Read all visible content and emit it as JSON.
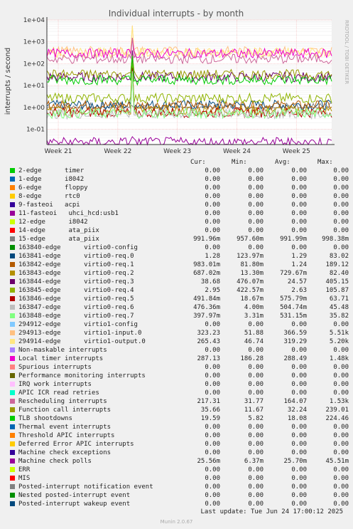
{
  "chart_data": {
    "type": "line",
    "title": "Individual interrupts - by month",
    "ylabel": "interrupts / second",
    "y_scale": "log",
    "ylim": [
      0.02,
      10000
    ],
    "y_ticks": [
      "1e+04",
      "1e+03",
      "1e+02",
      "1e+01",
      "1e+00",
      "1e-01"
    ],
    "x_ticks": [
      "Week 21",
      "Week 22",
      "Week 23",
      "Week 24",
      "Week 25"
    ],
    "grid": true,
    "side_text": "RRDTOOL / TOBI OETIKER",
    "columns": [
      "Cur:",
      "Min:",
      "Avg:",
      "Max:"
    ],
    "series": [
      {
        "name": "2-edge      timer",
        "color": "#00cc00",
        "cur": "0.00",
        "min": "0.00",
        "avg": "0.00",
        "max": "0.00"
      },
      {
        "name": "1-edge      i8042",
        "color": "#0066b3",
        "cur": "0.00",
        "min": "0.00",
        "avg": "0.00",
        "max": "0.00"
      },
      {
        "name": "6-edge      floppy",
        "color": "#ff8000",
        "cur": "0.00",
        "min": "0.00",
        "avg": "0.00",
        "max": "0.00"
      },
      {
        "name": "8-edge      rtc0",
        "color": "#ffcc00",
        "cur": "0.00",
        "min": "0.00",
        "avg": "0.00",
        "max": "0.00"
      },
      {
        "name": "9-fasteoi   acpi",
        "color": "#330099",
        "cur": "0.00",
        "min": "0.00",
        "avg": "0.00",
        "max": "0.00"
      },
      {
        "name": "11-fasteoi   uhci_hcd:usb1",
        "color": "#990099",
        "cur": "0.00",
        "min": "0.00",
        "avg": "0.00",
        "max": "0.00"
      },
      {
        "name": "12-edge      i8042",
        "color": "#ccff00",
        "cur": "0.00",
        "min": "0.00",
        "avg": "0.00",
        "max": "0.00"
      },
      {
        "name": "14-edge      ata_piix",
        "color": "#ff0000",
        "cur": "0.00",
        "min": "0.00",
        "avg": "0.00",
        "max": "0.00"
      },
      {
        "name": "15-edge      ata_piix",
        "color": "#808080",
        "cur": "991.96m",
        "min": "957.60m",
        "avg": "991.99m",
        "max": "998.38m"
      },
      {
        "name": "163840-edge      virtio0-config",
        "color": "#008f00",
        "cur": "0.00",
        "min": "0.00",
        "avg": "0.00",
        "max": "0.00"
      },
      {
        "name": "163841-edge      virtio0-req.0",
        "color": "#00487d",
        "cur": "1.28",
        "min": "123.97m",
        "avg": "1.29",
        "max": "83.02"
      },
      {
        "name": "163842-edge      virtio0-req.1",
        "color": "#b35a00",
        "cur": "983.01m",
        "min": "81.80m",
        "avg": "1.24",
        "max": "189.12"
      },
      {
        "name": "163843-edge      virtio0-req.2",
        "color": "#b38f00",
        "cur": "687.02m",
        "min": "13.30m",
        "avg": "729.67m",
        "max": "82.40"
      },
      {
        "name": "163844-edge      virtio0-req.3",
        "color": "#6b006b",
        "cur": "38.68",
        "min": "476.07m",
        "avg": "24.57",
        "max": "405.15"
      },
      {
        "name": "163845-edge      virtio0-req.4",
        "color": "#8fb300",
        "cur": "2.95",
        "min": "422.57m",
        "avg": "2.63",
        "max": "105.87"
      },
      {
        "name": "163846-edge      virtio0-req.5",
        "color": "#b30000",
        "cur": "491.84m",
        "min": "18.67m",
        "avg": "575.79m",
        "max": "63.71"
      },
      {
        "name": "163847-edge      virtio0-req.6",
        "color": "#bebebe",
        "cur": "476.36m",
        "min": "4.00m",
        "avg": "504.74m",
        "max": "45.48"
      },
      {
        "name": "163848-edge      virtio0-req.7",
        "color": "#80ff80",
        "cur": "397.97m",
        "min": "3.31m",
        "avg": "531.15m",
        "max": "35.82"
      },
      {
        "name": "294912-edge      virtio1-config",
        "color": "#80c9ff",
        "cur": "0.00",
        "min": "0.00",
        "avg": "0.00",
        "max": "0.00"
      },
      {
        "name": "294913-edge      virtio1-input.0",
        "color": "#ffc080",
        "cur": "323.23",
        "min": "51.88",
        "avg": "366.59",
        "max": "5.51k"
      },
      {
        "name": "294914-edge      virtio1-output.0",
        "color": "#ffe680",
        "cur": "265.43",
        "min": "46.74",
        "avg": "319.29",
        "max": "5.20k"
      },
      {
        "name": "Non-maskable interrupts",
        "color": "#aa80ff",
        "cur": "0.00",
        "min": "0.00",
        "avg": "0.00",
        "max": "0.00"
      },
      {
        "name": "Local timer interrupts",
        "color": "#ee00cc",
        "cur": "287.13",
        "min": "186.28",
        "avg": "288.49",
        "max": "1.48k"
      },
      {
        "name": "Spurious interrupts",
        "color": "#ff8080",
        "cur": "0.00",
        "min": "0.00",
        "avg": "0.00",
        "max": "0.00"
      },
      {
        "name": "Performance monitoring interrupts",
        "color": "#666600",
        "cur": "0.00",
        "min": "0.00",
        "avg": "0.00",
        "max": "0.00"
      },
      {
        "name": "IRQ work interrupts",
        "color": "#ffbfff",
        "cur": "0.00",
        "min": "0.00",
        "avg": "0.00",
        "max": "0.00"
      },
      {
        "name": "APIC ICR read retries",
        "color": "#00ffcc",
        "cur": "0.00",
        "min": "0.00",
        "avg": "0.00",
        "max": "0.00"
      },
      {
        "name": "Rescheduling interrupts",
        "color": "#cc6699",
        "cur": "217.31",
        "min": "31.77",
        "avg": "164.07",
        "max": "1.53k"
      },
      {
        "name": "Function call interrupts",
        "color": "#999900",
        "cur": "35.66",
        "min": "11.67",
        "avg": "32.24",
        "max": "239.01"
      },
      {
        "name": "TLB shootdowns",
        "color": "#00cc00",
        "cur": "19.59",
        "min": "5.82",
        "avg": "18.08",
        "max": "224.46"
      },
      {
        "name": "Thermal event interrupts",
        "color": "#0066b3",
        "cur": "0.00",
        "min": "0.00",
        "avg": "0.00",
        "max": "0.00"
      },
      {
        "name": "Threshold APIC interrupts",
        "color": "#ff8000",
        "cur": "0.00",
        "min": "0.00",
        "avg": "0.00",
        "max": "0.00"
      },
      {
        "name": "Deferred Error APIC interrupts",
        "color": "#ffcc00",
        "cur": "0.00",
        "min": "0.00",
        "avg": "0.00",
        "max": "0.00"
      },
      {
        "name": "Machine check exceptions",
        "color": "#330099",
        "cur": "0.00",
        "min": "0.00",
        "avg": "0.00",
        "max": "0.00"
      },
      {
        "name": "Machine check polls",
        "color": "#990099",
        "cur": "25.56m",
        "min": "6.37m",
        "avg": "25.70m",
        "max": "45.51m"
      },
      {
        "name": "ERR",
        "color": "#ccff00",
        "cur": "0.00",
        "min": "0.00",
        "avg": "0.00",
        "max": "0.00"
      },
      {
        "name": "MIS",
        "color": "#ff0000",
        "cur": "0.00",
        "min": "0.00",
        "avg": "0.00",
        "max": "0.00"
      },
      {
        "name": "Posted-interrupt notification event",
        "color": "#808080",
        "cur": "0.00",
        "min": "0.00",
        "avg": "0.00",
        "max": "0.00"
      },
      {
        "name": "Nested posted-interrupt event",
        "color": "#008f00",
        "cur": "0.00",
        "min": "0.00",
        "avg": "0.00",
        "max": "0.00"
      },
      {
        "name": "Posted-interrupt wakeup event",
        "color": "#00487d",
        "cur": "0.00",
        "min": "0.00",
        "avg": "0.00",
        "max": "0.00"
      }
    ]
  },
  "footer": {
    "last_update": "Last update: Tue Jun 24 17:00:12 2025",
    "munin_version": "Munin 2.0.67"
  }
}
